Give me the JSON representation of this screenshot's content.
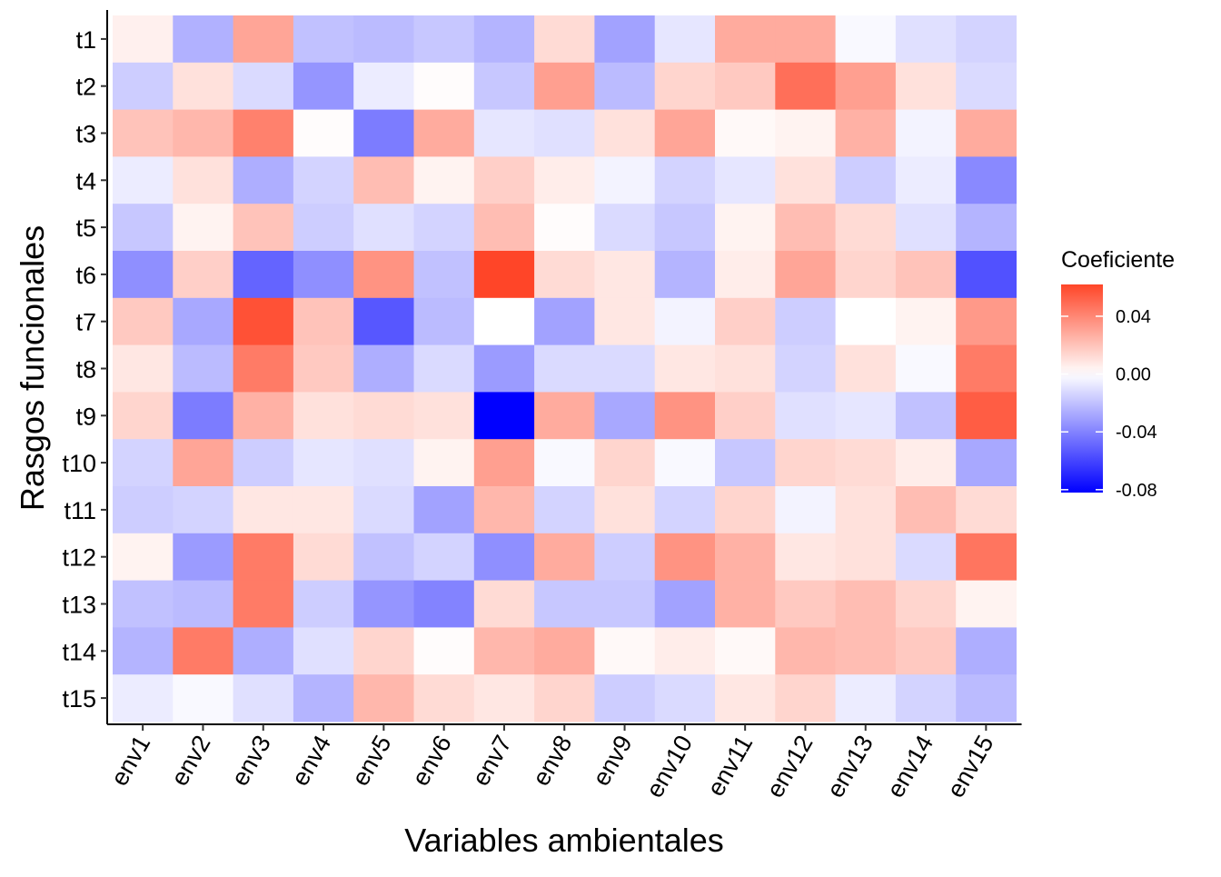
{
  "chart_data": {
    "type": "heatmap",
    "xlabel": "Variables ambientales",
    "ylabel": "Rasgos funcionales",
    "x": [
      "env1",
      "env2",
      "env3",
      "env4",
      "env5",
      "env6",
      "env7",
      "env8",
      "env9",
      "env10",
      "env11",
      "env12",
      "env13",
      "env14",
      "env15"
    ],
    "y": [
      "t1",
      "t2",
      "t3",
      "t4",
      "t5",
      "t6",
      "t7",
      "t8",
      "t9",
      "t10",
      "t11",
      "t12",
      "t13",
      "t14",
      "t15"
    ],
    "values": [
      [
        0.005,
        -0.025,
        0.03,
        -0.02,
        -0.022,
        -0.018,
        -0.024,
        0.012,
        -0.03,
        -0.008,
        0.028,
        0.028,
        -0.002,
        -0.01,
        -0.014
      ],
      [
        -0.016,
        0.01,
        -0.012,
        -0.034,
        -0.006,
        0.001,
        -0.018,
        0.032,
        -0.022,
        0.014,
        0.018,
        0.048,
        0.032,
        0.01,
        -0.012
      ],
      [
        0.02,
        0.024,
        0.042,
        0.001,
        -0.042,
        0.028,
        -0.008,
        -0.01,
        0.01,
        0.03,
        0.002,
        0.004,
        0.026,
        -0.004,
        0.028
      ],
      [
        -0.006,
        0.01,
        -0.026,
        -0.014,
        0.022,
        0.004,
        0.016,
        0.006,
        -0.004,
        -0.014,
        -0.008,
        0.01,
        -0.016,
        -0.006,
        -0.038
      ],
      [
        -0.018,
        0.004,
        0.02,
        -0.016,
        -0.01,
        -0.014,
        0.022,
        0.001,
        -0.012,
        -0.018,
        0.004,
        0.022,
        0.012,
        -0.01,
        -0.024
      ],
      [
        -0.036,
        0.016,
        -0.05,
        -0.036,
        0.036,
        -0.02,
        0.062,
        0.012,
        0.008,
        -0.024,
        0.006,
        0.03,
        0.014,
        0.02,
        -0.056
      ],
      [
        0.018,
        -0.028,
        0.058,
        0.02,
        -0.054,
        -0.022,
        0.0,
        -0.03,
        0.008,
        -0.004,
        0.016,
        -0.016,
        0.0,
        0.004,
        0.034
      ],
      [
        0.008,
        -0.022,
        0.044,
        0.018,
        -0.026,
        -0.012,
        -0.032,
        -0.012,
        -0.012,
        0.008,
        0.01,
        -0.014,
        0.01,
        -0.002,
        0.044
      ],
      [
        0.014,
        -0.042,
        0.026,
        0.01,
        0.012,
        0.01,
        -0.082,
        0.028,
        -0.028,
        0.036,
        0.016,
        -0.01,
        -0.008,
        -0.02,
        0.054
      ],
      [
        -0.014,
        0.03,
        -0.016,
        -0.008,
        -0.01,
        0.004,
        0.032,
        -0.002,
        0.014,
        -0.002,
        -0.018,
        0.014,
        0.012,
        0.006,
        -0.028
      ],
      [
        -0.016,
        -0.014,
        0.008,
        0.008,
        -0.012,
        -0.03,
        0.024,
        -0.014,
        0.01,
        -0.014,
        0.014,
        -0.004,
        0.01,
        0.022,
        0.012
      ],
      [
        0.004,
        -0.032,
        0.044,
        0.012,
        -0.02,
        -0.014,
        -0.036,
        0.028,
        -0.016,
        0.036,
        0.026,
        0.008,
        0.01,
        -0.012,
        0.046
      ],
      [
        -0.02,
        -0.022,
        0.044,
        -0.016,
        -0.034,
        -0.04,
        0.012,
        -0.018,
        -0.018,
        -0.03,
        0.026,
        0.018,
        0.022,
        0.014,
        0.004
      ],
      [
        -0.024,
        0.044,
        -0.026,
        -0.01,
        0.014,
        0.001,
        0.024,
        0.028,
        0.002,
        0.006,
        0.002,
        0.024,
        0.022,
        0.018,
        -0.026
      ],
      [
        -0.006,
        -0.002,
        -0.01,
        -0.024,
        0.024,
        0.012,
        0.008,
        0.014,
        -0.016,
        -0.012,
        0.008,
        0.014,
        -0.006,
        -0.014,
        -0.022
      ]
    ],
    "legend": {
      "title": "Coeficiente",
      "position": "right",
      "range": [
        -0.082,
        0.062
      ],
      "breaks": [
        0.04,
        0.0,
        -0.04,
        -0.08
      ],
      "break_labels": [
        "0.04",
        "0.00",
        "-0.04",
        "-0.08"
      ],
      "low_color": "#0000ff",
      "mid_color": "#ffffff",
      "high_color": "#ff4528"
    },
    "grid": false
  }
}
